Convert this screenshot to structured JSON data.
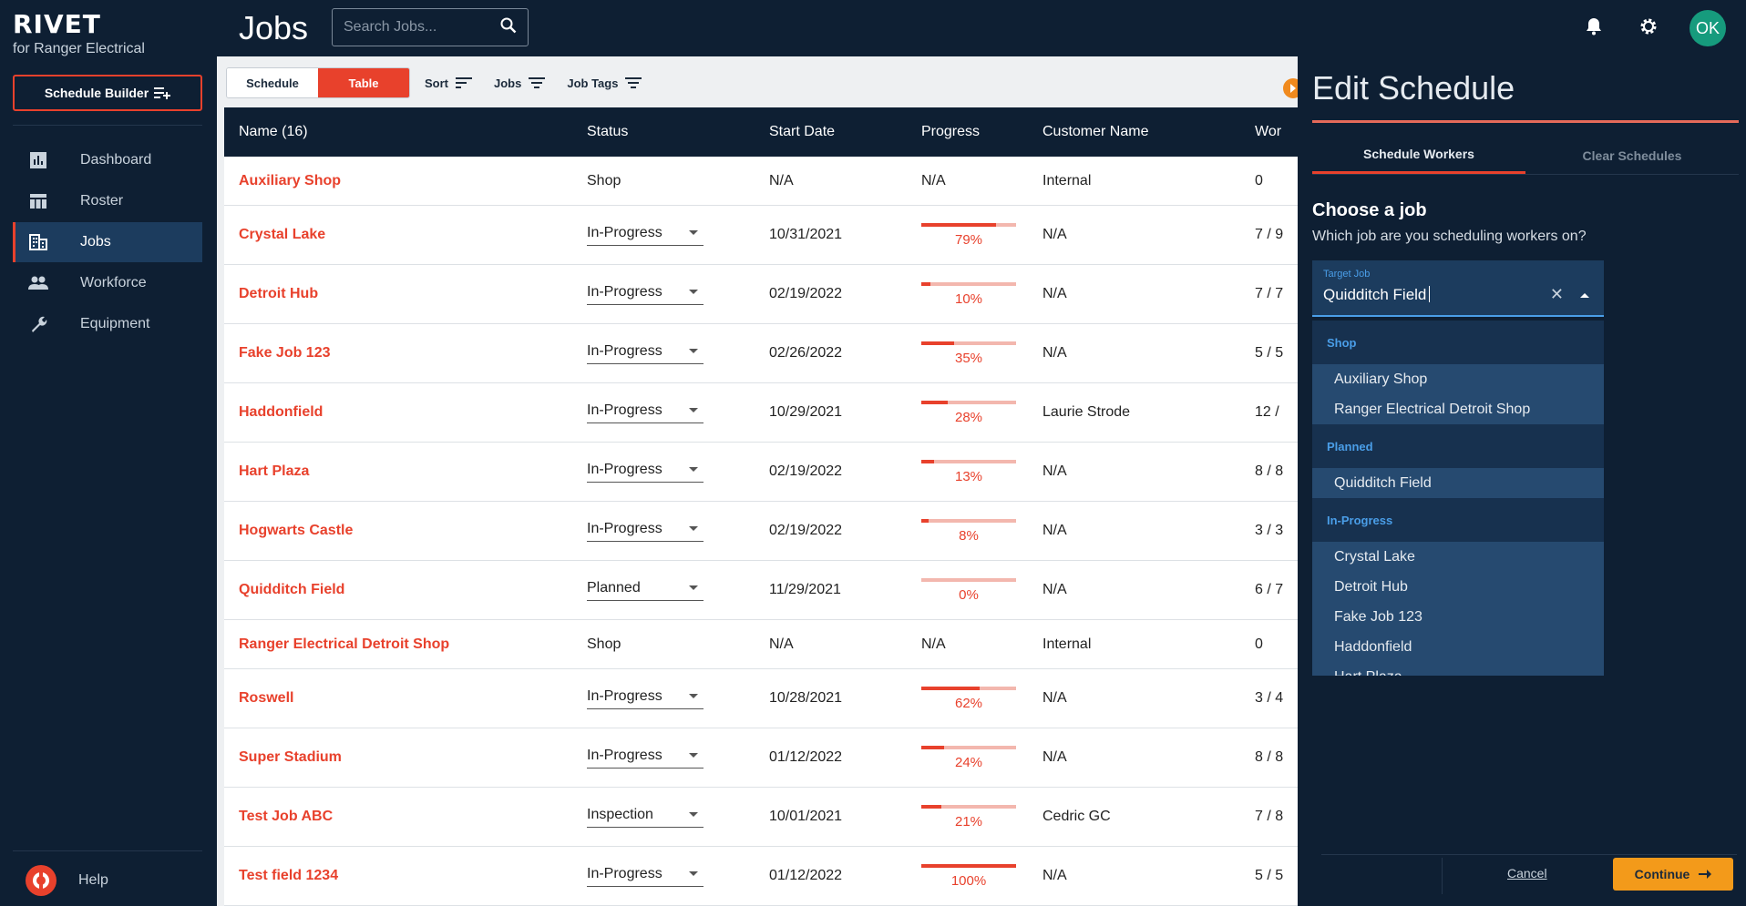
{
  "brand": {
    "logo": "RIVET",
    "subtitle": "for Ranger Electrical"
  },
  "sidebar": {
    "schedule_builder": "Schedule Builder",
    "items": [
      {
        "label": "Dashboard",
        "icon": "dashboard-icon"
      },
      {
        "label": "Roster",
        "icon": "roster-icon"
      },
      {
        "label": "Jobs",
        "icon": "jobs-icon",
        "active": true
      },
      {
        "label": "Workforce",
        "icon": "workforce-icon"
      },
      {
        "label": "Equipment",
        "icon": "wrench-icon"
      }
    ],
    "help": "Help"
  },
  "header": {
    "title": "Jobs",
    "search_placeholder": "Search Jobs..."
  },
  "toolbar": {
    "view_schedule": "Schedule",
    "view_table": "Table",
    "sort": "Sort",
    "jobs": "Jobs",
    "job_tags": "Job Tags"
  },
  "table": {
    "columns": [
      "Name (16)",
      "Status",
      "Start Date",
      "Progress",
      "Customer Name",
      "Wor"
    ],
    "rows": [
      {
        "name": "Auxiliary Shop",
        "status": "Shop",
        "select": false,
        "start": "N/A",
        "progress": "N/A",
        "customer": "Internal",
        "workers": "0"
      },
      {
        "name": "Crystal Lake",
        "status": "In-Progress",
        "select": true,
        "start": "10/31/2021",
        "progress": 79,
        "customer": "N/A",
        "workers": "7 / 9"
      },
      {
        "name": "Detroit Hub",
        "status": "In-Progress",
        "select": true,
        "start": "02/19/2022",
        "progress": 10,
        "customer": "N/A",
        "workers": "7 / 7"
      },
      {
        "name": "Fake Job 123",
        "status": "In-Progress",
        "select": true,
        "start": "02/26/2022",
        "progress": 35,
        "customer": "N/A",
        "workers": "5 / 5"
      },
      {
        "name": "Haddonfield",
        "status": "In-Progress",
        "select": true,
        "start": "10/29/2021",
        "progress": 28,
        "customer": "Laurie Strode",
        "workers": "12 /"
      },
      {
        "name": "Hart Plaza",
        "status": "In-Progress",
        "select": true,
        "start": "02/19/2022",
        "progress": 13,
        "customer": "N/A",
        "workers": "8 / 8"
      },
      {
        "name": "Hogwarts Castle",
        "status": "In-Progress",
        "select": true,
        "start": "02/19/2022",
        "progress": 8,
        "customer": "N/A",
        "workers": "3 / 3"
      },
      {
        "name": "Quidditch Field",
        "status": "Planned",
        "select": true,
        "start": "11/29/2021",
        "progress": 0,
        "customer": "N/A",
        "workers": "6 / 7"
      },
      {
        "name": "Ranger Electrical Detroit Shop",
        "status": "Shop",
        "select": false,
        "start": "N/A",
        "progress": "N/A",
        "customer": "Internal",
        "workers": "0"
      },
      {
        "name": "Roswell",
        "status": "In-Progress",
        "select": true,
        "start": "10/28/2021",
        "progress": 62,
        "customer": "N/A",
        "workers": "3 / 4"
      },
      {
        "name": "Super Stadium",
        "status": "In-Progress",
        "select": true,
        "start": "01/12/2022",
        "progress": 24,
        "customer": "N/A",
        "workers": "8 / 8"
      },
      {
        "name": "Test Job ABC",
        "status": "Inspection",
        "select": true,
        "start": "10/01/2021",
        "progress": 21,
        "customer": "Cedric GC",
        "workers": "7 / 8"
      },
      {
        "name": "Test field 1234",
        "status": "In-Progress",
        "select": true,
        "start": "01/12/2022",
        "progress": 100,
        "customer": "N/A",
        "workers": "5 / 5"
      }
    ]
  },
  "panel": {
    "title": "Edit Schedule",
    "tabs": [
      "Schedule Workers",
      "Clear Schedules"
    ],
    "heading": "Choose a job",
    "subheading": "Which job are you scheduling workers on?",
    "field_label": "Target Job",
    "field_value": "Quidditch Field",
    "groups": [
      {
        "label": "Shop",
        "options": [
          "Auxiliary Shop",
          "Ranger Electrical Detroit Shop"
        ]
      },
      {
        "label": "Planned",
        "options": [
          "Quidditch Field"
        ]
      },
      {
        "label": "In-Progress",
        "options": [
          "Crystal Lake",
          "Detroit Hub",
          "Fake Job 123",
          "Haddonfield",
          "Hart Plaza"
        ]
      }
    ],
    "cancel": "Cancel",
    "continue": "Continue"
  },
  "user": {
    "initials": "OK"
  },
  "colors": {
    "accent": "#e8412c",
    "navy": "#0e1f33",
    "continue": "#f39a1a",
    "avatar": "#169b7d"
  }
}
